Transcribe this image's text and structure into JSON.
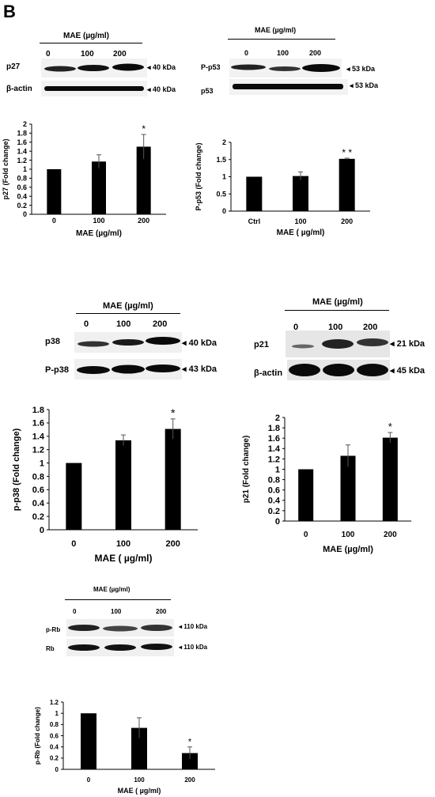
{
  "panel_label": "B",
  "blots": [
    {
      "id": "p27-blot",
      "header": "MAE (µg/ml)",
      "doses": [
        "0",
        "100",
        "200"
      ],
      "rows": [
        {
          "name": "p27",
          "size": "◂ 40 kDa"
        },
        {
          "name": "β-actin",
          "size": "◂ 40 kDa"
        }
      ]
    },
    {
      "id": "pp53-blot",
      "header": "MAE (µg/ml)",
      "doses": [
        "0",
        "100",
        "200"
      ],
      "rows": [
        {
          "name": "P-p53",
          "size": "◂ 53 kDa"
        },
        {
          "name": "p53",
          "size": "◂ 53 kDa"
        }
      ]
    },
    {
      "id": "p38-blot",
      "header": "MAE (µg/ml)",
      "doses": [
        "0",
        "100",
        "200"
      ],
      "rows": [
        {
          "name": "p38",
          "size": "◂ 40 kDa"
        },
        {
          "name": "P-p38",
          "size": "◂ 43 kDa"
        }
      ]
    },
    {
      "id": "p21-blot",
      "header": "MAE (µg/ml)",
      "doses": [
        "0",
        "100",
        "200"
      ],
      "rows": [
        {
          "name": "p21",
          "size": "◂ 21 kDa"
        },
        {
          "name": "β-actin",
          "size": "◂ 45 kDa"
        }
      ]
    },
    {
      "id": "prb-blot",
      "header": "MAE (µg/ml)",
      "doses": [
        "0",
        "100",
        "200"
      ],
      "rows": [
        {
          "name": "p-Rb",
          "size": "◂ 110 kDa"
        },
        {
          "name": "Rb",
          "size": "◂ 110 kDa"
        }
      ]
    }
  ],
  "chart_data": [
    {
      "type": "bar",
      "categories": [
        "0",
        "100",
        "200"
      ],
      "values": [
        1.0,
        1.17,
        1.5
      ],
      "errors": [
        0,
        0.15,
        0.27
      ],
      "significance": [
        "",
        "",
        "*"
      ],
      "xlabel": "MAE (µg/ml)",
      "ylabel": "p27 (Fold change)",
      "ylim": [
        0,
        2
      ],
      "yticks": [
        "0",
        "0.2",
        "0.4",
        "0.6",
        "0.8",
        "1",
        "1.2",
        "1.4",
        "1.6",
        "1.8",
        "2"
      ]
    },
    {
      "type": "bar",
      "categories": [
        "Ctrl",
        "100",
        "200"
      ],
      "values": [
        1.0,
        1.02,
        1.52
      ],
      "errors": [
        0,
        0.12,
        0.02
      ],
      "significance": [
        "",
        "",
        "* *"
      ],
      "xlabel": "MAE ( µg/ml)",
      "ylabel": "P-p53 (Fold change)",
      "ylim": [
        0,
        2
      ],
      "yticks": [
        "0",
        "0.5",
        "1",
        "1.5",
        "2"
      ]
    },
    {
      "type": "bar",
      "categories": [
        "0",
        "100",
        "200"
      ],
      "values": [
        1.0,
        1.34,
        1.51
      ],
      "errors": [
        0,
        0.08,
        0.15
      ],
      "significance": [
        "",
        "",
        "*"
      ],
      "xlabel": "MAE ( µg/ml)",
      "ylabel": "p-p38 (Fold change)",
      "ylim": [
        0,
        1.8
      ],
      "yticks": [
        "0",
        "0.2",
        "0.4",
        "0.6",
        "0.8",
        "1",
        "1.2",
        "1.4",
        "1.6",
        "1.8"
      ]
    },
    {
      "type": "bar",
      "categories": [
        "0",
        "100",
        "200"
      ],
      "values": [
        1.0,
        1.26,
        1.61
      ],
      "errors": [
        0,
        0.21,
        0.1
      ],
      "significance": [
        "",
        "",
        "*"
      ],
      "xlabel": "MAE (µg/ml)",
      "ylabel": "p21  (Fold change)",
      "ylim": [
        0,
        2
      ],
      "yticks": [
        "0",
        "0.2",
        "0.4",
        "0.6",
        "0.8",
        "1",
        "1.2",
        "1.4",
        "1.6",
        "1.8",
        "2"
      ]
    },
    {
      "type": "bar",
      "categories": [
        "0",
        "100",
        "200"
      ],
      "values": [
        1.0,
        0.74,
        0.29
      ],
      "errors": [
        0,
        0.18,
        0.11
      ],
      "significance": [
        "",
        "",
        "*"
      ],
      "xlabel": "MAE ( µg/ml)",
      "ylabel": "p-Rb (Fold change)",
      "ylim": [
        0,
        1.2
      ],
      "yticks": [
        "0",
        "0.2",
        "0.4",
        "0.6",
        "0.8",
        "1",
        "1.2"
      ]
    }
  ]
}
